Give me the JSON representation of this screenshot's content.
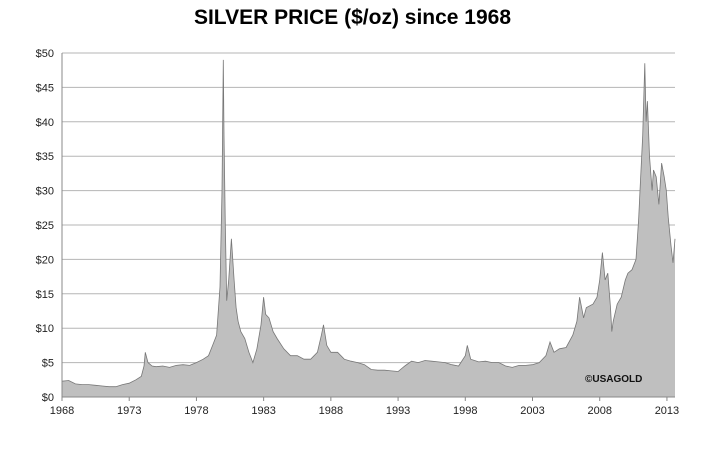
{
  "chart_data": {
    "type": "area",
    "title": "SILVER PRICE ($/oz) since 1968",
    "xlabel": "",
    "ylabel": "",
    "xlim": [
      1968,
      2013.6
    ],
    "ylim": [
      0,
      50
    ],
    "x_tick_labels": [
      "1968",
      "1973",
      "1978",
      "1983",
      "1988",
      "1993",
      "1998",
      "2003",
      "2008",
      "2013"
    ],
    "y_tick_labels": [
      "$0",
      "$5",
      "$10",
      "$15",
      "$20",
      "$25",
      "$30",
      "$35",
      "$40",
      "$45",
      "$50"
    ],
    "grid": "horizontal",
    "fill_color": "#bfbfbf",
    "line_color": "#777777",
    "annotation": "©USAGOLD",
    "series": [
      {
        "x": [
          1968.0,
          1968.5,
          1969.0,
          1969.5,
          1970.0,
          1970.5,
          1971.0,
          1971.5,
          1972.0,
          1972.5,
          1973.0,
          1973.5,
          1973.9,
          1974.1,
          1974.2,
          1974.4,
          1974.7,
          1975.0,
          1975.5,
          1976.0,
          1976.5,
          1977.0,
          1977.5,
          1978.0,
          1978.5,
          1978.9,
          1979.2,
          1979.5,
          1979.75,
          1979.9,
          1980.0,
          1980.05,
          1980.15,
          1980.25,
          1980.4,
          1980.6,
          1980.8,
          1980.95,
          1981.1,
          1981.3,
          1981.6,
          1981.9,
          1982.2,
          1982.5,
          1982.8,
          1983.0,
          1983.15,
          1983.4,
          1983.7,
          1984.0,
          1984.5,
          1985.0,
          1985.5,
          1986.0,
          1986.5,
          1987.0,
          1987.3,
          1987.45,
          1987.7,
          1988.0,
          1988.5,
          1989.0,
          1989.5,
          1990.0,
          1990.5,
          1991.0,
          1991.5,
          1992.0,
          1992.5,
          1993.0,
          1993.5,
          1994.0,
          1994.5,
          1995.0,
          1995.5,
          1996.0,
          1996.5,
          1997.0,
          1997.5,
          1998.0,
          1998.15,
          1998.4,
          1999.0,
          1999.5,
          2000.0,
          2000.5,
          2001.0,
          2001.5,
          2002.0,
          2002.5,
          2003.0,
          2003.5,
          2004.0,
          2004.3,
          2004.6,
          2005.0,
          2005.5,
          2006.0,
          2006.3,
          2006.5,
          2006.8,
          2007.0,
          2007.5,
          2007.8,
          2008.0,
          2008.2,
          2008.4,
          2008.6,
          2008.8,
          2008.9,
          2009.0,
          2009.3,
          2009.6,
          2009.9,
          2010.1,
          2010.4,
          2010.7,
          2010.9,
          2011.0,
          2011.2,
          2011.35,
          2011.45,
          2011.55,
          2011.7,
          2011.9,
          2012.0,
          2012.2,
          2012.4,
          2012.6,
          2012.8,
          2012.95,
          2013.1,
          2013.3,
          2013.45,
          2013.6
        ],
        "y": [
          2.3,
          2.4,
          1.9,
          1.8,
          1.8,
          1.7,
          1.6,
          1.5,
          1.5,
          1.8,
          2.0,
          2.5,
          3.0,
          4.5,
          6.5,
          5.0,
          4.5,
          4.4,
          4.5,
          4.3,
          4.6,
          4.7,
          4.6,
          5.0,
          5.5,
          6.0,
          7.5,
          9.0,
          16.0,
          30.0,
          49.0,
          38.0,
          25.0,
          14.0,
          17.0,
          23.0,
          17.0,
          13.0,
          11.0,
          9.5,
          8.5,
          6.5,
          5.0,
          7.0,
          10.5,
          14.5,
          12.0,
          11.5,
          9.5,
          8.5,
          7.0,
          6.0,
          6.0,
          5.5,
          5.5,
          6.5,
          9.0,
          10.5,
          7.5,
          6.5,
          6.5,
          5.5,
          5.2,
          5.0,
          4.7,
          4.0,
          3.9,
          3.9,
          3.8,
          3.7,
          4.5,
          5.2,
          5.0,
          5.3,
          5.2,
          5.1,
          5.0,
          4.7,
          4.5,
          6.0,
          7.5,
          5.5,
          5.1,
          5.2,
          5.0,
          5.0,
          4.5,
          4.3,
          4.6,
          4.6,
          4.7,
          5.0,
          6.0,
          8.0,
          6.5,
          7.0,
          7.2,
          9.0,
          11.0,
          14.5,
          11.5,
          13.0,
          13.5,
          14.5,
          17.0,
          21.0,
          17.0,
          18.0,
          13.0,
          9.5,
          11.0,
          13.5,
          14.5,
          17.0,
          18.0,
          18.5,
          20.0,
          26.0,
          30.0,
          38.0,
          48.5,
          40.0,
          43.0,
          35.0,
          30.0,
          33.0,
          32.0,
          28.0,
          34.0,
          32.0,
          30.0,
          26.0,
          22.0,
          19.5,
          23.0
        ]
      }
    ]
  }
}
